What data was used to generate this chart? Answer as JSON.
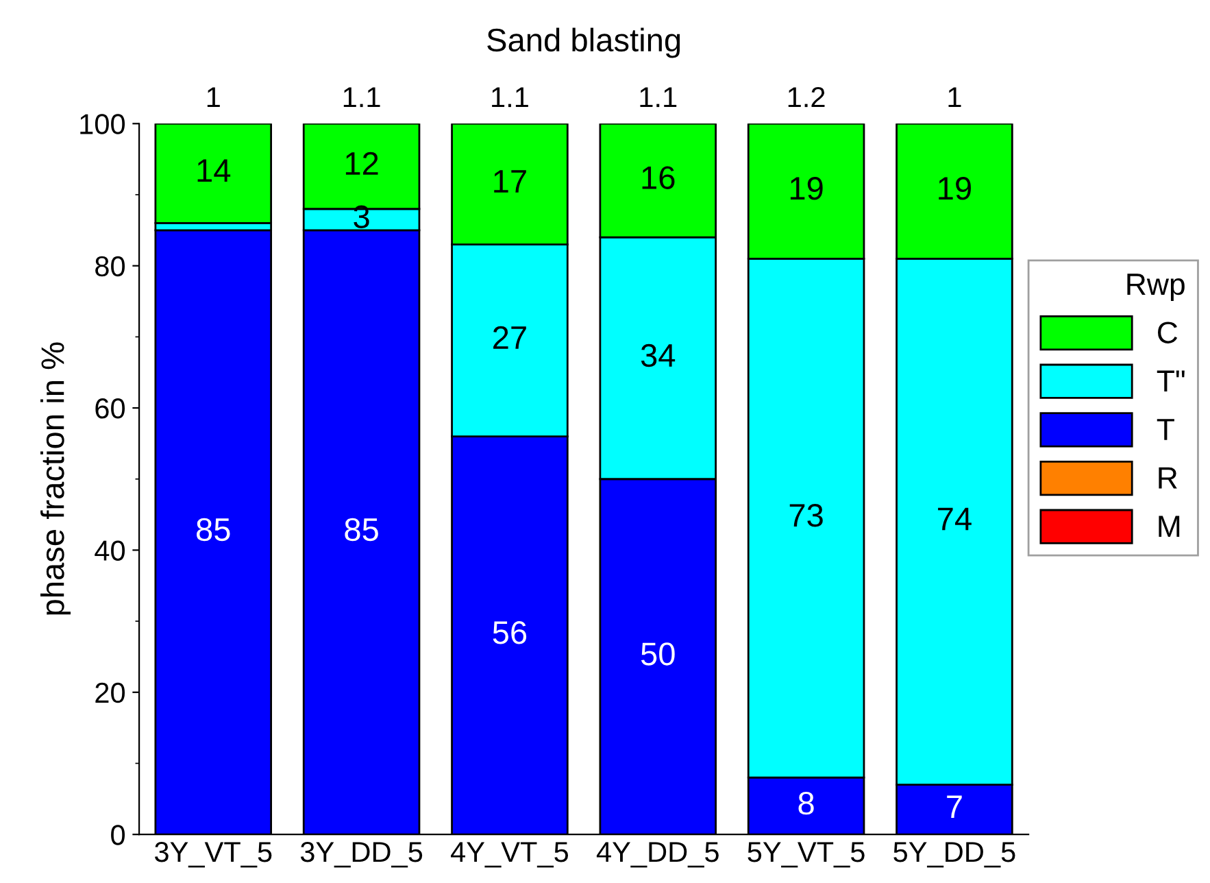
{
  "chart_data": {
    "type": "bar",
    "stacked": true,
    "title": "Sand blasting",
    "ylabel": "phase fraction in %",
    "legend_title": "Rwp",
    "legend": "right",
    "categories": [
      "3Y_VT_5",
      "3Y_DD_5",
      "4Y_VT_5",
      "4Y_DD_5",
      "5Y_VT_5",
      "5Y_DD_5"
    ],
    "annotations": [
      "1",
      "1.1",
      "1.1",
      "1.1",
      "1.2",
      "1"
    ],
    "ylim": [
      0,
      100
    ],
    "yticks": [
      0,
      20,
      40,
      60,
      80,
      100
    ],
    "grid": false,
    "series": [
      {
        "name": "M",
        "color": "#ff0000",
        "values": [
          0,
          0,
          0,
          0,
          0,
          0
        ],
        "value_labels": [
          null,
          null,
          null,
          null,
          null,
          null
        ]
      },
      {
        "name": "R",
        "color": "#ff8000",
        "values": [
          0,
          0,
          0,
          0,
          0,
          0
        ],
        "value_labels": [
          null,
          null,
          null,
          null,
          null,
          null
        ]
      },
      {
        "name": "T",
        "color": "#0000ff",
        "values": [
          85,
          85,
          56,
          50,
          8,
          7
        ],
        "value_labels": [
          "85",
          "85",
          "56",
          "50",
          "8",
          "7"
        ]
      },
      {
        "name": "T\"",
        "color": "#00ffff",
        "values": [
          1,
          3,
          27,
          34,
          73,
          74
        ],
        "value_labels": [
          null,
          "3",
          "27",
          "34",
          "73",
          "74"
        ]
      },
      {
        "name": "C",
        "color": "#00ff00",
        "values": [
          14,
          12,
          17,
          16,
          19,
          19
        ],
        "value_labels": [
          "14",
          "12",
          "17",
          "16",
          "19",
          "19"
        ]
      }
    ]
  }
}
